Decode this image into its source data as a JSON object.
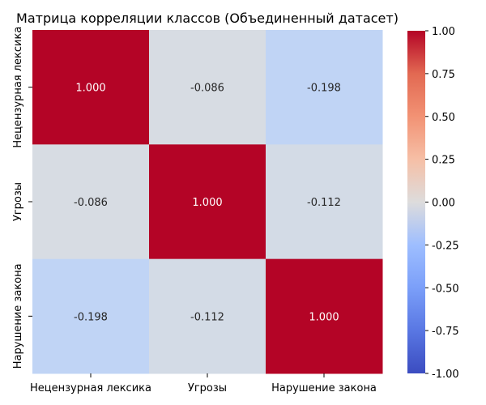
{
  "chart_data": {
    "type": "heatmap",
    "title": "Матрица корреляции классов (Объединенный датасет)",
    "x_categories": [
      "Нецензурная лексика",
      "Угрозы",
      "Нарушение закона"
    ],
    "y_categories": [
      "Нецензурная лексика",
      "Угрозы",
      "Нарушение закона"
    ],
    "values": [
      [
        1.0,
        -0.086,
        -0.198
      ],
      [
        -0.086,
        1.0,
        -0.112
      ],
      [
        -0.198,
        -0.112,
        1.0
      ]
    ],
    "value_labels": [
      [
        "1.000",
        "-0.086",
        "-0.198"
      ],
      [
        "-0.086",
        "1.000",
        "-0.112"
      ],
      [
        "-0.198",
        "-0.112",
        "1.000"
      ]
    ],
    "colormap": "coolwarm",
    "vmin": -1.0,
    "vmax": 1.0,
    "colorbar_ticks": [
      "-1.00",
      "-0.75",
      "-0.50",
      "-0.25",
      "0.00",
      "0.25",
      "0.50",
      "0.75",
      "1.00"
    ],
    "colorbar_tick_values": [
      -1.0,
      -0.75,
      -0.5,
      -0.25,
      0.0,
      0.25,
      0.5,
      0.75,
      1.0
    ],
    "grid": false,
    "colorbar_placement": "right"
  }
}
